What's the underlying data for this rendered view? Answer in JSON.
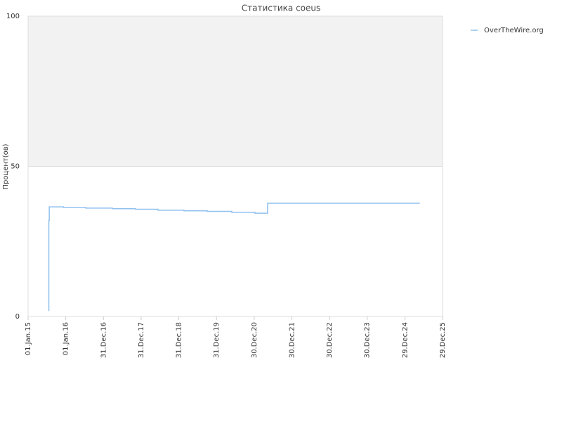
{
  "chart_data": {
    "type": "line",
    "title": "Статистика coeus",
    "y_label": "Процент(ов)",
    "step": "post",
    "x": [
      "2015-07-17",
      "2015-07-21",
      "2015-07-25",
      "2015-12-10",
      "2016-07-12",
      "2017-03-27",
      "2017-11-07",
      "2018-06-12",
      "2019-02-19",
      "2019-10-02",
      "2020-05-27",
      "2021-01-06",
      "2021-05-09",
      "2025-05-23"
    ],
    "series": [
      {
        "name": "OverTheWire.org",
        "color": "#90c0ef",
        "values": [
          2,
          32,
          36.5,
          36.3,
          36.1,
          35.9,
          35.7,
          35.4,
          35.2,
          35.0,
          34.7,
          34.4,
          37.7,
          37.7
        ]
      }
    ],
    "xlim": [
      "2015-01-01",
      "2025-12-29"
    ],
    "xticks": [
      {
        "value": "2015-01-01",
        "label": "01.Jan.15"
      },
      {
        "value": "2016-01-01",
        "label": "01.Jan.16"
      },
      {
        "value": "2016-12-31",
        "label": "31.Dec.16"
      },
      {
        "value": "2017-12-31",
        "label": "31.Dec.17"
      },
      {
        "value": "2018-12-31",
        "label": "31.Dec.18"
      },
      {
        "value": "2019-12-31",
        "label": "31.Dec.19"
      },
      {
        "value": "2020-12-30",
        "label": "30.Dec.20"
      },
      {
        "value": "2021-12-30",
        "label": "30.Dec.21"
      },
      {
        "value": "2022-12-30",
        "label": "30.Dec.22"
      },
      {
        "value": "2023-12-30",
        "label": "30.Dec.23"
      },
      {
        "value": "2024-12-29",
        "label": "29.Dec.24"
      },
      {
        "value": "2025-12-29",
        "label": "29.Dec.25"
      }
    ],
    "ylim": [
      0,
      100
    ],
    "yticks": [
      0,
      50,
      100
    ],
    "grid": true,
    "legend": "top-right"
  }
}
